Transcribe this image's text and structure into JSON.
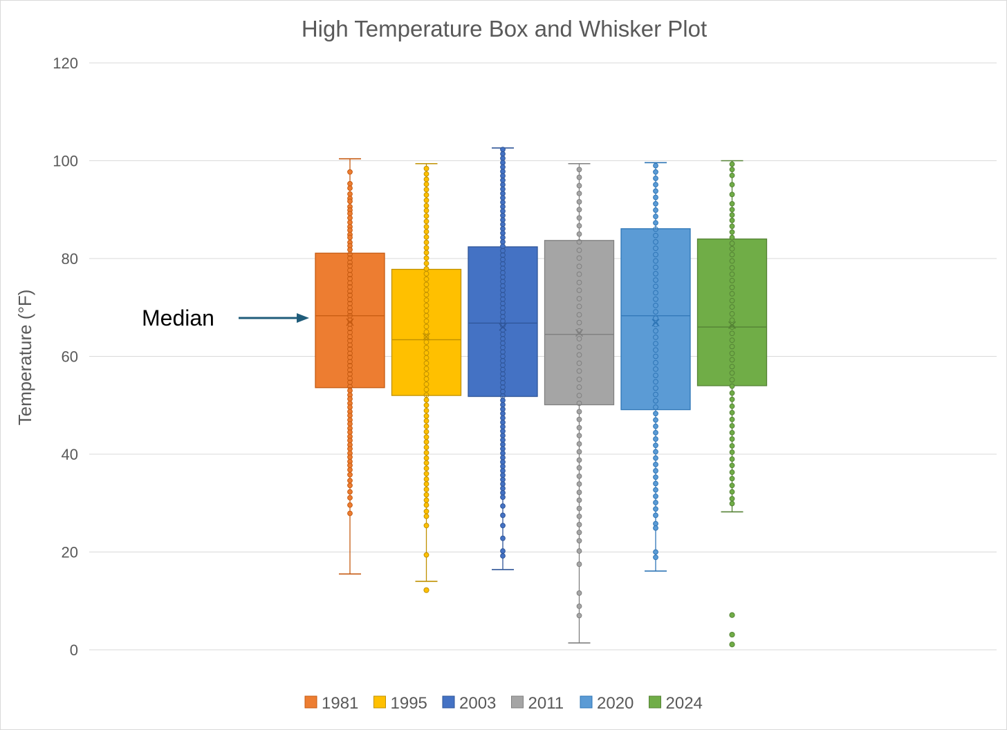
{
  "chart_data": {
    "type": "box",
    "title": "High Temperature Box and Whisker Plot",
    "xlabel": "",
    "ylabel": "Temperature (°F)",
    "ylim": [
      0,
      120
    ],
    "yticks": [
      0,
      20,
      40,
      60,
      80,
      100,
      120
    ],
    "grid": true,
    "legend_position": "bottom",
    "annotation": {
      "text": "Median",
      "points_to": "1981 median"
    },
    "series": [
      {
        "name": "1981",
        "color": "#ED7D31",
        "dark": "#C55A11",
        "min": 15.5,
        "q1": 53.6,
        "median": 68.3,
        "mean": 67.0,
        "q3": 81.1,
        "max": 100.4,
        "outliers": [],
        "points": [
          97.7,
          95.3,
          94.4,
          93.2,
          92.3,
          91.7,
          90.6,
          89.9,
          89.2,
          88.3,
          87.4,
          86.5,
          85.8,
          84.9,
          84.3,
          83.3,
          82.6,
          81.8,
          80.9,
          80.1,
          79.2,
          78.5,
          77.6,
          76.7,
          75.9,
          75.0,
          74.2,
          73.3,
          72.5,
          71.6,
          70.8,
          69.9,
          69.1,
          68.3,
          67.4,
          66.6,
          65.7,
          64.9,
          64.0,
          63.2,
          62.3,
          61.5,
          60.6,
          59.8,
          58.9,
          58.1,
          57.2,
          56.4,
          55.5,
          54.7,
          53.8,
          53.0,
          52.1,
          51.3,
          50.4,
          49.6,
          48.7,
          47.9,
          47.0,
          46.2,
          45.3,
          44.5,
          43.6,
          42.8,
          41.9,
          41.1,
          40.2,
          39.4,
          38.5,
          37.7,
          36.8,
          35.8,
          34.6,
          33.6,
          32.3,
          31.1,
          29.6,
          27.9
        ]
      },
      {
        "name": "1995",
        "color": "#FFC000",
        "dark": "#BF9000",
        "min": 14.0,
        "q1": 52.0,
        "median": 63.4,
        "mean": 64.0,
        "q3": 77.8,
        "max": 99.4,
        "outliers": [
          12.2
        ],
        "points": [
          98.4,
          97.3,
          96.2,
          95.2,
          94.1,
          93.0,
          91.9,
          90.8,
          89.8,
          88.7,
          87.6,
          86.5,
          85.5,
          84.4,
          83.3,
          82.2,
          81.2,
          80.1,
          79.0,
          77.9,
          76.9,
          75.8,
          74.7,
          73.6,
          72.6,
          71.5,
          70.4,
          69.3,
          68.3,
          67.2,
          66.1,
          65.0,
          64.0,
          62.9,
          61.8,
          60.7,
          59.7,
          58.6,
          57.5,
          56.4,
          55.4,
          54.3,
          53.2,
          52.1,
          51.1,
          50.0,
          48.9,
          47.8,
          46.8,
          45.7,
          44.6,
          43.5,
          42.5,
          41.4,
          40.3,
          39.2,
          38.2,
          37.1,
          36.0,
          34.9,
          33.9,
          32.8,
          31.7,
          30.6,
          29.6,
          28.3,
          27.3,
          25.4,
          19.4
        ]
      },
      {
        "name": "2003",
        "color": "#4472C4",
        "dark": "#2F5597",
        "min": 16.4,
        "q1": 51.8,
        "median": 66.8,
        "mean": 66.0,
        "q3": 82.4,
        "max": 102.6,
        "outliers": [],
        "points": [
          102.3,
          101.4,
          100.5,
          99.6,
          98.7,
          97.8,
          96.9,
          96.0,
          95.1,
          94.2,
          93.3,
          92.4,
          91.5,
          90.6,
          89.7,
          88.8,
          87.9,
          87.0,
          86.1,
          85.2,
          84.3,
          83.4,
          82.5,
          81.6,
          80.7,
          79.8,
          78.9,
          78.0,
          77.1,
          76.2,
          75.3,
          74.4,
          73.5,
          72.6,
          71.7,
          70.8,
          69.9,
          69.0,
          68.1,
          67.2,
          66.3,
          65.4,
          64.5,
          63.6,
          62.7,
          61.8,
          60.9,
          60.0,
          59.1,
          58.2,
          57.3,
          56.4,
          55.5,
          54.6,
          53.7,
          52.8,
          51.9,
          51.0,
          50.1,
          49.2,
          48.3,
          47.4,
          46.5,
          45.6,
          44.7,
          43.8,
          42.9,
          42.0,
          41.1,
          40.2,
          39.3,
          38.4,
          37.5,
          36.6,
          35.7,
          34.8,
          33.9,
          33.0,
          32.1,
          31.2,
          29.4,
          27.5,
          25.4,
          22.8,
          20.2,
          19.2
        ]
      },
      {
        "name": "2011",
        "color": "#A5A5A5",
        "dark": "#7F7F7F",
        "min": 1.4,
        "q1": 50.1,
        "median": 64.5,
        "mean": 64.8,
        "q3": 83.7,
        "max": 99.4,
        "outliers": [],
        "points": [
          98.2,
          96.6,
          94.9,
          93.3,
          91.6,
          90.0,
          88.3,
          86.7,
          85.0,
          83.4,
          81.7,
          80.1,
          78.4,
          76.8,
          75.1,
          73.5,
          71.8,
          70.2,
          68.5,
          66.9,
          65.2,
          63.6,
          61.9,
          60.3,
          58.6,
          57.0,
          55.3,
          53.7,
          52.0,
          50.4,
          48.7,
          47.1,
          45.4,
          43.8,
          42.1,
          40.5,
          38.8,
          37.2,
          35.5,
          33.9,
          32.2,
          30.6,
          28.9,
          27.3,
          25.6,
          24.0,
          22.3,
          20.2,
          17.5,
          11.6,
          8.9,
          7.0
        ]
      },
      {
        "name": "2020",
        "color": "#5B9BD5",
        "dark": "#2E75B6",
        "min": 16.1,
        "q1": 49.1,
        "median": 68.3,
        "mean": 66.9,
        "q3": 86.1,
        "max": 99.6,
        "outliers": [],
        "points": [
          99.0,
          97.7,
          96.4,
          95.1,
          93.8,
          92.5,
          91.2,
          89.9,
          88.6,
          87.3,
          86.0,
          84.7,
          83.4,
          82.1,
          80.8,
          79.5,
          78.2,
          76.9,
          75.6,
          74.3,
          73.0,
          71.7,
          70.4,
          69.1,
          67.8,
          66.5,
          65.2,
          63.9,
          62.6,
          61.3,
          60.0,
          58.7,
          57.4,
          56.1,
          54.8,
          53.5,
          52.2,
          50.9,
          49.6,
          48.3,
          47.0,
          45.7,
          44.4,
          43.1,
          41.8,
          40.5,
          39.2,
          37.9,
          36.6,
          35.3,
          34.0,
          32.7,
          31.4,
          30.1,
          28.8,
          27.5,
          25.8,
          24.9,
          20.0,
          18.9
        ]
      },
      {
        "name": "2024",
        "color": "#70AD47",
        "dark": "#548235",
        "min": 28.2,
        "q1": 54.0,
        "median": 66.0,
        "mean": 66.4,
        "q3": 84.0,
        "max": 100.0,
        "outliers": [
          7.1,
          3.1,
          1.1
        ],
        "points": [
          99.3,
          98.2,
          97.0,
          95.1,
          93.1,
          91.2,
          90.0,
          88.9,
          87.8,
          86.6,
          85.4,
          84.3,
          83.1,
          82.0,
          80.8,
          79.5,
          78.1,
          76.8,
          75.5,
          74.1,
          72.8,
          71.4,
          70.1,
          68.7,
          67.4,
          66.0,
          64.7,
          63.3,
          62.0,
          60.6,
          59.3,
          57.9,
          56.6,
          55.2,
          53.9,
          52.5,
          51.2,
          49.8,
          48.5,
          47.1,
          45.8,
          44.4,
          43.1,
          41.7,
          40.4,
          39.0,
          37.7,
          36.3,
          35.0,
          33.6,
          32.3,
          30.9,
          29.9
        ]
      }
    ]
  }
}
